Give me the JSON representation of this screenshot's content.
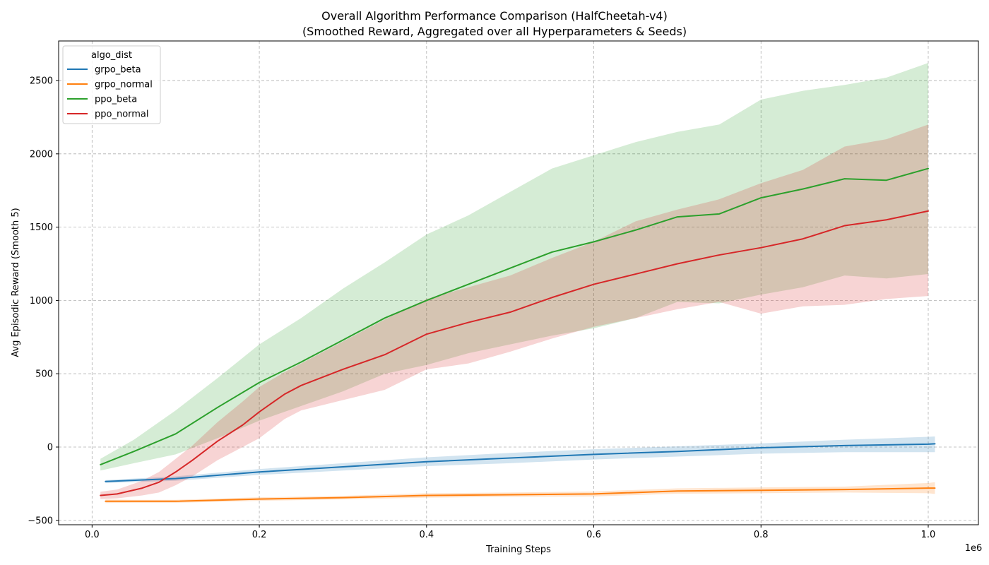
{
  "chart_data": {
    "type": "line",
    "title": "Overall Algorithm Performance Comparison (HalfCheetah-v4)",
    "subtitle": "(Smoothed Reward, Aggregated over all Hyperparameters & Seeds)",
    "xlabel": "Training Steps",
    "ylabel": "Avg Episodic Reward (Smooth 5)",
    "x_offset_text": "1e6",
    "xlim": [
      -0.04,
      1.06
    ],
    "ylim": [
      -530,
      2770
    ],
    "x_ticks": [
      0.0,
      0.2,
      0.4,
      0.6,
      0.8,
      1.0
    ],
    "x_tick_labels": [
      "0.0",
      "0.2",
      "0.4",
      "0.6",
      "0.8",
      "1.0"
    ],
    "y_ticks": [
      -500,
      0,
      500,
      1000,
      1500,
      2000,
      2500
    ],
    "y_tick_labels": [
      "−500",
      "0",
      "500",
      "1000",
      "1500",
      "2000",
      "2500"
    ],
    "grid": true,
    "legend_title": "algo_dist",
    "legend_position": "top-left",
    "series": [
      {
        "name": "grpo_beta",
        "color": "#1f77b4",
        "x": [
          0.016,
          0.1,
          0.2,
          0.3,
          0.4,
          0.5,
          0.6,
          0.7,
          0.8,
          0.9,
          1.0,
          1.008
        ],
        "values": [
          -235,
          -215,
          -170,
          -135,
          -100,
          -75,
          -50,
          -30,
          -5,
          10,
          20,
          22
        ],
        "upper": [
          -225,
          -200,
          -150,
          -110,
          -70,
          -40,
          -15,
          5,
          25,
          50,
          70,
          72
        ],
        "lower": [
          -245,
          -230,
          -190,
          -160,
          -130,
          -110,
          -85,
          -65,
          -45,
          -35,
          -35,
          -35
        ]
      },
      {
        "name": "grpo_normal",
        "color": "#ff7f0e",
        "x": [
          0.016,
          0.05,
          0.1,
          0.2,
          0.3,
          0.4,
          0.5,
          0.6,
          0.7,
          0.8,
          0.9,
          1.0,
          1.008
        ],
        "values": [
          -370,
          -370,
          -370,
          -355,
          -345,
          -330,
          -325,
          -320,
          -300,
          -295,
          -290,
          -280,
          -280
        ],
        "upper": [
          -358,
          -360,
          -360,
          -343,
          -333,
          -315,
          -310,
          -303,
          -282,
          -275,
          -270,
          -245,
          -240
        ],
        "lower": [
          -382,
          -380,
          -380,
          -367,
          -357,
          -345,
          -340,
          -337,
          -318,
          -315,
          -310,
          -315,
          -320
        ]
      },
      {
        "name": "ppo_beta",
        "color": "#2ca02c",
        "x": [
          0.01,
          0.05,
          0.1,
          0.15,
          0.2,
          0.25,
          0.3,
          0.35,
          0.4,
          0.45,
          0.5,
          0.55,
          0.6,
          0.65,
          0.7,
          0.75,
          0.8,
          0.85,
          0.9,
          0.95,
          1.0
        ],
        "values": [
          -120,
          -30,
          90,
          270,
          440,
          580,
          730,
          880,
          1000,
          1110,
          1220,
          1330,
          1400,
          1480,
          1570,
          1590,
          1700,
          1760,
          1830,
          1820,
          1900
        ],
        "upper": [
          -80,
          50,
          250,
          470,
          700,
          880,
          1080,
          1260,
          1450,
          1580,
          1740,
          1900,
          1990,
          2080,
          2150,
          2200,
          2370,
          2430,
          2470,
          2520,
          2620
        ],
        "lower": [
          -160,
          -110,
          -50,
          60,
          180,
          280,
          380,
          500,
          560,
          640,
          700,
          760,
          810,
          880,
          990,
          980,
          1040,
          1090,
          1170,
          1150,
          1180
        ]
      },
      {
        "name": "ppo_normal",
        "color": "#d62728",
        "x": [
          0.01,
          0.03,
          0.06,
          0.08,
          0.1,
          0.12,
          0.15,
          0.18,
          0.2,
          0.23,
          0.25,
          0.3,
          0.35,
          0.4,
          0.45,
          0.5,
          0.55,
          0.6,
          0.65,
          0.7,
          0.75,
          0.8,
          0.85,
          0.9,
          0.95,
          1.0
        ],
        "values": [
          -330,
          -320,
          -280,
          -240,
          -170,
          -90,
          40,
          150,
          240,
          360,
          420,
          530,
          630,
          770,
          850,
          920,
          1020,
          1110,
          1180,
          1250,
          1310,
          1360,
          1420,
          1510,
          1550,
          1610
        ],
        "upper": [
          -305,
          -290,
          -230,
          -170,
          -80,
          10,
          170,
          310,
          410,
          510,
          570,
          720,
          870,
          1010,
          1090,
          1170,
          1290,
          1400,
          1540,
          1620,
          1690,
          1800,
          1890,
          2050,
          2100,
          2200
        ],
        "lower": [
          -355,
          -350,
          -330,
          -310,
          -260,
          -200,
          -90,
          0,
          60,
          190,
          250,
          320,
          390,
          530,
          570,
          650,
          740,
          820,
          880,
          940,
          990,
          910,
          960,
          970,
          1010,
          1030
        ]
      }
    ]
  }
}
